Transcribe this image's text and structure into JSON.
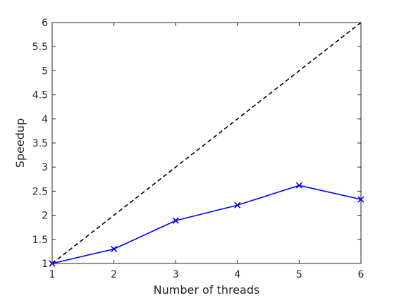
{
  "chart_data": {
    "type": "line",
    "title": "",
    "xlabel": "Number of threads",
    "ylabel": "Speedup",
    "xlim": [
      1,
      6
    ],
    "ylim": [
      1,
      6
    ],
    "x_ticks": [
      "1",
      "2",
      "3",
      "4",
      "5",
      "6"
    ],
    "y_ticks": [
      "1",
      "1.5",
      "2",
      "2.5",
      "3",
      "3.5",
      "4",
      "4.5",
      "5",
      "5.5",
      "6"
    ],
    "grid": false,
    "series": [
      {
        "style": "solid",
        "marker": "x",
        "color": "#0000FF",
        "points": [
          {
            "x": 1,
            "y": 1.0
          },
          {
            "x": 2,
            "y": 1.3
          },
          {
            "x": 3,
            "y": 1.89
          },
          {
            "x": 4,
            "y": 2.21
          },
          {
            "x": 5,
            "y": 2.62
          },
          {
            "x": 6,
            "y": 2.33
          }
        ]
      },
      {
        "style": "dashed",
        "color": "#000000",
        "points": [
          {
            "x": 1,
            "y": 1
          },
          {
            "x": 6,
            "y": 6
          }
        ]
      }
    ]
  }
}
